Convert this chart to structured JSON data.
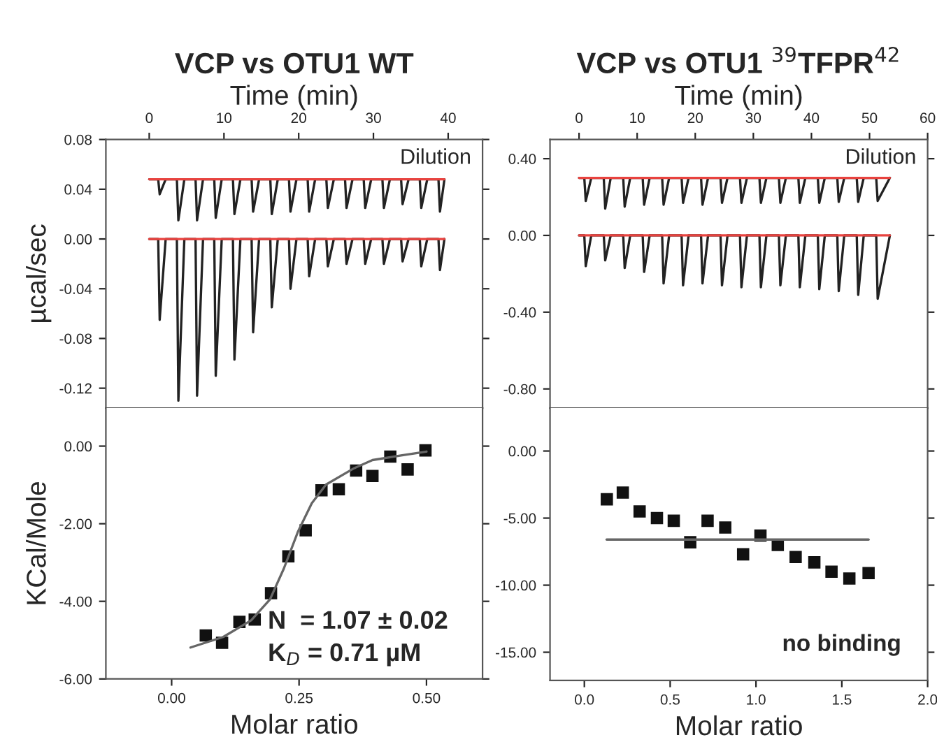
{
  "chart_data": [
    {
      "type": "line",
      "title": "VCP vs OTU1 WT",
      "xlabel": "Time (min)",
      "ylabel": "µcal/sec",
      "xlim": [
        -5.8,
        44.6
      ],
      "xticks": [
        0,
        10,
        20,
        30,
        40
      ],
      "ylim": [
        -0.136,
        0.08
      ],
      "yticks": [
        {
          "value": 0.08,
          "label": "0.08"
        },
        {
          "value": 0.04,
          "label": "0.04"
        },
        {
          "value": 0.0,
          "label": "0.00"
        },
        {
          "value": -0.04,
          "label": "-0.04"
        },
        {
          "value": -0.08,
          "label": "-0.08"
        },
        {
          "value": -0.12,
          "label": "-0.12"
        }
      ],
      "grid": false,
      "annotations": [
        "Dilution"
      ],
      "series": [
        {
          "color": "#222222",
          "x": [
            0,
            1.2,
            1.4,
            2.2,
            3.7,
            3.9,
            4.7,
            6.2,
            6.4,
            7.2,
            8.7,
            8.9,
            9.7,
            11.2,
            11.4,
            12.2,
            13.7,
            13.9,
            14.7,
            16.2,
            16.4,
            17.2,
            18.7,
            18.9,
            19.7,
            21.2,
            21.4,
            22.2,
            23.7,
            23.9,
            24.7,
            26.2,
            26.4,
            27.2,
            28.7,
            28.9,
            29.7,
            31.2,
            31.4,
            32.2,
            33.7,
            33.9,
            34.7,
            36.2,
            36.4,
            37.2,
            38.7,
            38.9,
            39.5
          ],
          "values": [
            0.048,
            0.048,
            0.036,
            0.048,
            0.048,
            0.015,
            0.048,
            0.048,
            0.015,
            0.048,
            0.048,
            0.017,
            0.048,
            0.048,
            0.02,
            0.048,
            0.048,
            0.022,
            0.048,
            0.048,
            0.02,
            0.048,
            0.048,
            0.022,
            0.048,
            0.048,
            0.022,
            0.048,
            0.048,
            0.025,
            0.048,
            0.048,
            0.025,
            0.048,
            0.048,
            0.025,
            0.048,
            0.048,
            0.025,
            0.048,
            0.048,
            0.028,
            0.048,
            0.048,
            0.025,
            0.048,
            0.048,
            0.022,
            0.048
          ]
        },
        {
          "color": "#222222",
          "x": [
            0,
            1.2,
            1.4,
            2.2,
            3.7,
            3.9,
            4.7,
            6.2,
            6.4,
            7.2,
            8.7,
            8.9,
            9.7,
            11.2,
            11.4,
            12.2,
            13.7,
            13.9,
            14.7,
            16.2,
            16.4,
            17.2,
            18.7,
            18.9,
            19.7,
            21.2,
            21.4,
            22.2,
            23.7,
            23.9,
            24.7,
            26.2,
            26.4,
            27.2,
            28.7,
            28.9,
            29.7,
            31.2,
            31.4,
            32.2,
            33.7,
            33.9,
            34.7,
            36.2,
            36.4,
            37.2,
            38.7,
            38.9,
            39.5
          ],
          "values": [
            0,
            0,
            -0.065,
            0,
            0,
            -0.13,
            0,
            0,
            -0.126,
            0,
            0,
            -0.11,
            0,
            0,
            -0.097,
            0,
            0,
            -0.075,
            0,
            0,
            -0.055,
            0,
            0,
            -0.04,
            0,
            0,
            -0.03,
            0,
            0,
            -0.022,
            0,
            0,
            -0.02,
            0,
            0,
            -0.02,
            0,
            0,
            -0.02,
            0,
            0,
            -0.018,
            0,
            0,
            -0.022,
            0,
            0,
            -0.025,
            0
          ]
        },
        {
          "color": "#e8433f",
          "x": [
            0,
            39.5
          ],
          "values": [
            0.048,
            0.048
          ]
        },
        {
          "color": "#e8433f",
          "x": [
            0,
            39.5
          ],
          "values": [
            0,
            0
          ]
        }
      ]
    },
    {
      "type": "line",
      "title": "VCP vs OTU1 $^{39}$TFPR$^{42}$",
      "xlabel": "Time (min)",
      "xlim": [
        -5,
        60
      ],
      "xticks": [
        0,
        10,
        20,
        30,
        40,
        50,
        60
      ],
      "ylim": [
        -0.9,
        0.5
      ],
      "yticks": [
        {
          "value": 0.4,
          "label": "0.40"
        },
        {
          "value": 0.0,
          "label": "0.00"
        },
        {
          "value": -0.4,
          "label": "-0.40"
        },
        {
          "value": -0.8,
          "label": "-0.80"
        }
      ],
      "grid": false,
      "annotations": [
        "Dilution"
      ],
      "series": [
        {
          "color": "#222222",
          "x": [
            0,
            0.9,
            1.15,
            2.1,
            4.25,
            4.5,
            5.45,
            7.6,
            7.85,
            8.8,
            10.95,
            11.2,
            12.15,
            14.3,
            14.55,
            15.5,
            17.65,
            17.9,
            18.85,
            21.0,
            21.25,
            22.2,
            24.35,
            24.6,
            25.55,
            27.7,
            27.95,
            28.9,
            31.05,
            31.3,
            32.25,
            34.4,
            34.65,
            35.6,
            37.75,
            38.0,
            38.95,
            41.1,
            41.35,
            42.3,
            44.45,
            44.7,
            45.65,
            47.8,
            48.05,
            49.0,
            51.15,
            51.4,
            53.5
          ],
          "values": [
            0.3,
            0.3,
            0.18,
            0.3,
            0.3,
            0.14,
            0.3,
            0.3,
            0.15,
            0.3,
            0.3,
            0.16,
            0.3,
            0.3,
            0.16,
            0.3,
            0.3,
            0.17,
            0.3,
            0.3,
            0.16,
            0.3,
            0.3,
            0.17,
            0.3,
            0.3,
            0.17,
            0.3,
            0.3,
            0.17,
            0.3,
            0.3,
            0.17,
            0.3,
            0.3,
            0.17,
            0.3,
            0.3,
            0.17,
            0.3,
            0.3,
            0.175,
            0.3,
            0.3,
            0.175,
            0.3,
            0.3,
            0.18,
            0.3
          ]
        },
        {
          "color": "#222222",
          "x": [
            0,
            0.9,
            1.15,
            2.1,
            4.25,
            4.5,
            5.45,
            7.6,
            7.85,
            8.8,
            10.95,
            11.2,
            12.15,
            14.3,
            14.55,
            15.5,
            17.65,
            17.9,
            18.85,
            21.0,
            21.25,
            22.2,
            24.35,
            24.6,
            25.55,
            27.7,
            27.95,
            28.9,
            31.05,
            31.3,
            32.25,
            34.4,
            34.65,
            35.6,
            37.75,
            38.0,
            38.95,
            41.1,
            41.35,
            42.3,
            44.45,
            44.7,
            45.65,
            47.8,
            48.05,
            49.0,
            51.15,
            51.4,
            53.5
          ],
          "values": [
            0,
            0,
            -0.16,
            0,
            0,
            -0.13,
            0,
            0,
            -0.17,
            0,
            0,
            -0.19,
            0,
            0,
            -0.25,
            0,
            0,
            -0.26,
            0,
            0,
            -0.25,
            0,
            0,
            -0.26,
            0,
            0,
            -0.27,
            0,
            0,
            -0.27,
            0,
            0,
            -0.26,
            0,
            0,
            -0.27,
            0,
            0,
            -0.28,
            0,
            0,
            -0.29,
            0,
            0,
            -0.31,
            0,
            0,
            -0.33,
            0
          ]
        },
        {
          "color": "#e8433f",
          "x": [
            0,
            53.5
          ],
          "values": [
            0.3,
            0.3
          ]
        },
        {
          "color": "#e8433f",
          "x": [
            0,
            53.5
          ],
          "values": [
            0,
            0
          ]
        }
      ]
    },
    {
      "type": "scatter",
      "xlabel": "Molar ratio",
      "ylabel": "KCal/Mole",
      "xlim": [
        -0.129,
        0.61
      ],
      "xticks": [
        {
          "value": 0.0,
          "label": "0.00"
        },
        {
          "value": 0.25,
          "label": "0.25"
        },
        {
          "value": 0.5,
          "label": "0.50"
        }
      ],
      "ylim": [
        -6,
        0.98
      ],
      "yticks": [
        {
          "value": 0.0,
          "label": "0.00"
        },
        {
          "value": -2.0,
          "label": "-2.00"
        },
        {
          "value": -4.0,
          "label": "-4.00"
        },
        {
          "value": -6.0,
          "label": "-6.00"
        }
      ],
      "grid": false,
      "annotations": [
        "N  = 1.07 ± 0.02",
        "K$_{D}$ = 0.71 µM"
      ],
      "series": [
        {
          "type": "scatter",
          "marker": "square",
          "color": "#111111",
          "x": [
            0.067,
            0.099,
            0.133,
            0.163,
            0.195,
            0.229,
            0.263,
            0.294,
            0.328,
            0.362,
            0.394,
            0.429,
            0.463,
            0.498
          ],
          "values": [
            -4.88,
            -5.07,
            -4.53,
            -4.47,
            -3.79,
            -2.84,
            -2.17,
            -1.14,
            -1.11,
            -0.63,
            -0.77,
            -0.27,
            -0.6,
            -0.11
          ]
        },
        {
          "type": "line",
          "color": "#666666",
          "x": [
            0.037,
            0.101,
            0.156,
            0.193,
            0.22,
            0.248,
            0.275,
            0.303,
            0.358,
            0.394,
            0.45,
            0.5
          ],
          "values": [
            -5.19,
            -4.92,
            -4.49,
            -3.95,
            -3.16,
            -2.2,
            -1.47,
            -0.99,
            -0.57,
            -0.36,
            -0.24,
            -0.14
          ]
        }
      ]
    },
    {
      "type": "scatter",
      "xlabel": "Molar ratio",
      "xlim": [
        -0.2,
        2.0
      ],
      "xticks": [
        {
          "value": 0.0,
          "label": "0.0"
        },
        {
          "value": 0.5,
          "label": "0.5"
        },
        {
          "value": 1.0,
          "label": "1.0"
        },
        {
          "value": 1.5,
          "label": "1.5"
        },
        {
          "value": 2.0,
          "label": "2.0"
        }
      ],
      "ylim": [
        -17.1,
        3.2
      ],
      "yticks": [
        {
          "value": 0.0,
          "label": "0.00"
        },
        {
          "value": -5.0,
          "label": "-5.00"
        },
        {
          "value": -10.0,
          "label": "-10.00"
        },
        {
          "value": -15.0,
          "label": "-15.00"
        }
      ],
      "grid": false,
      "annotations": [
        "no binding"
      ],
      "series": [
        {
          "type": "scatter",
          "marker": "square",
          "color": "#111111",
          "x": [
            0.131,
            0.224,
            0.322,
            0.423,
            0.521,
            0.617,
            0.718,
            0.821,
            0.925,
            1.026,
            1.127,
            1.231,
            1.34,
            1.44,
            1.544,
            1.656
          ],
          "values": [
            -3.6,
            -3.1,
            -4.5,
            -5.0,
            -5.2,
            -6.8,
            -5.2,
            -5.7,
            -7.7,
            -6.3,
            -7.0,
            -7.9,
            -8.3,
            -9.0,
            -9.5,
            -9.1
          ]
        },
        {
          "type": "line",
          "color": "#666666",
          "x": [
            0.13,
            1.656
          ],
          "values": [
            -6.6,
            -6.6
          ]
        }
      ]
    }
  ]
}
